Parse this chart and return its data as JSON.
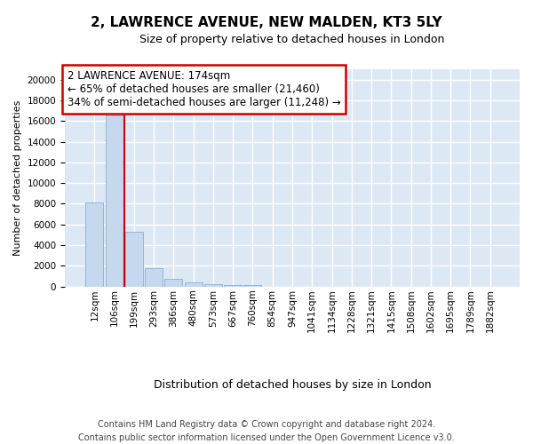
{
  "title1": "2, LAWRENCE AVENUE, NEW MALDEN, KT3 5LY",
  "title2": "Size of property relative to detached houses in London",
  "xlabel": "Distribution of detached houses by size in London",
  "ylabel": "Number of detached properties",
  "footnote": "Contains HM Land Registry data © Crown copyright and database right 2024.\nContains public sector information licensed under the Open Government Licence v3.0.",
  "bin_labels": [
    "12sqm",
    "106sqm",
    "199sqm",
    "293sqm",
    "386sqm",
    "480sqm",
    "573sqm",
    "667sqm",
    "760sqm",
    "854sqm",
    "947sqm",
    "1041sqm",
    "1134sqm",
    "1228sqm",
    "1321sqm",
    "1415sqm",
    "1508sqm",
    "1602sqm",
    "1695sqm",
    "1789sqm",
    "1882sqm"
  ],
  "bar_heights": [
    8100,
    16500,
    5300,
    1750,
    780,
    370,
    200,
    130,
    110,
    0,
    0,
    0,
    0,
    0,
    0,
    0,
    0,
    0,
    0,
    0,
    0
  ],
  "bar_color": "#c5d8ee",
  "bar_edge_color": "#8ab0d4",
  "background_color": "#dde8f5",
  "grid_color": "#ffffff",
  "property_label": "2 LAWRENCE AVENUE: 174sqm",
  "annotation_line1": "← 65% of detached houses are smaller (21,460)",
  "annotation_line2": "34% of semi-detached houses are larger (11,248) →",
  "red_line_color": "#cc0000",
  "red_line_x": 1.5,
  "ylim": [
    0,
    21000
  ],
  "yticks": [
    0,
    2000,
    4000,
    6000,
    8000,
    10000,
    12000,
    14000,
    16000,
    18000,
    20000
  ],
  "fig_background": "#ffffff",
  "title1_fontsize": 11,
  "title2_fontsize": 9,
  "footnote_fontsize": 7,
  "ylabel_fontsize": 8,
  "xlabel_fontsize": 9,
  "annotation_fontsize": 8.5,
  "tick_fontsize": 7.5
}
